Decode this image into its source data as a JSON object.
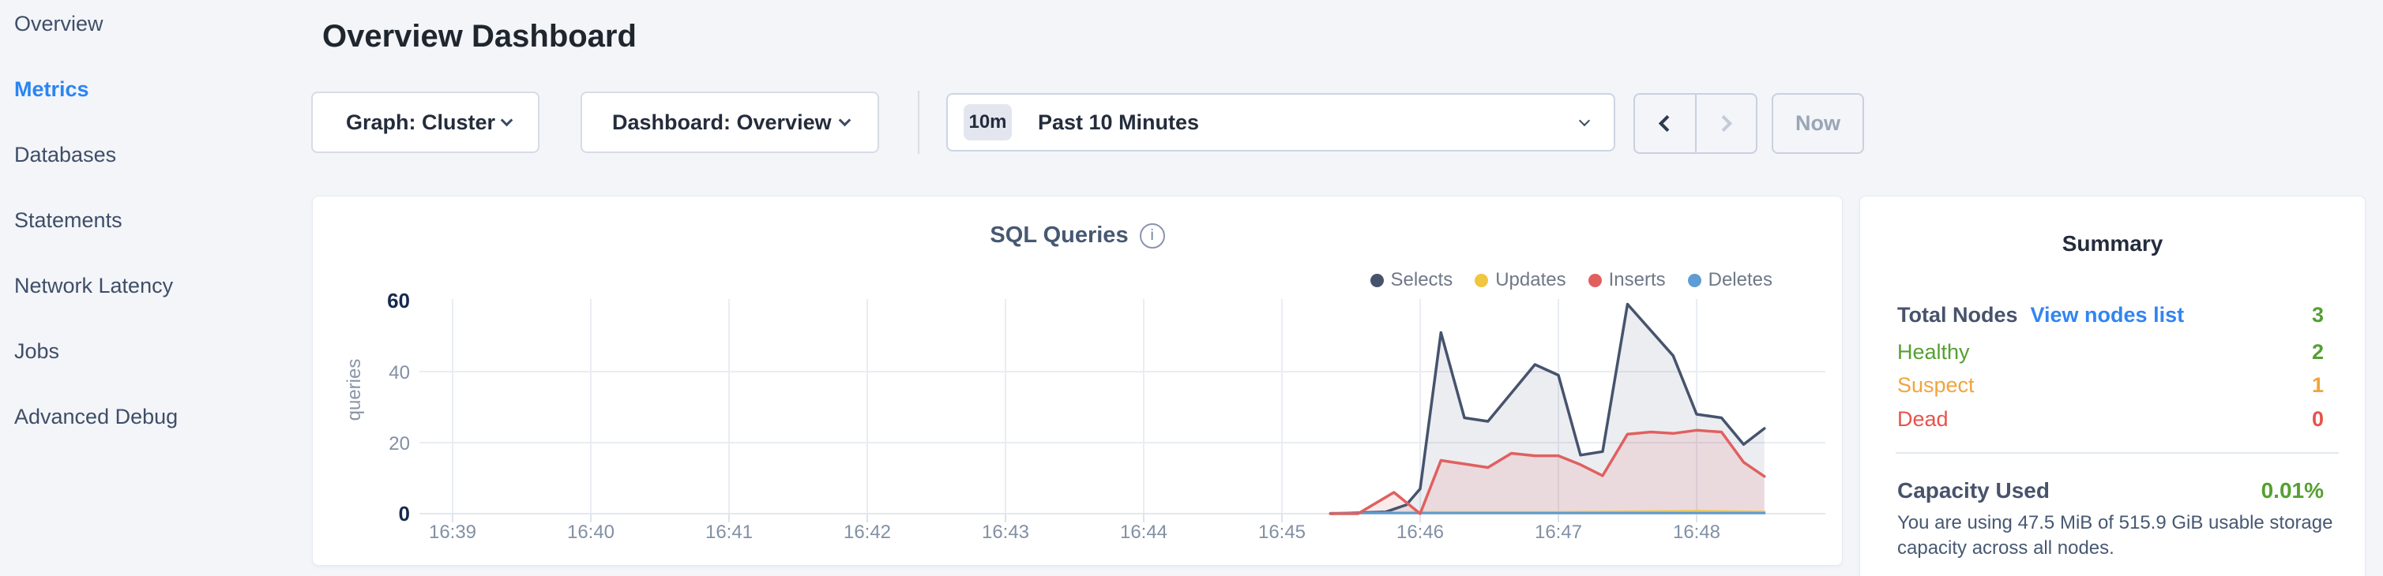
{
  "sidebar": {
    "items": [
      {
        "label": "Overview",
        "active": false
      },
      {
        "label": "Metrics",
        "active": true
      },
      {
        "label": "Databases",
        "active": false
      },
      {
        "label": "Statements",
        "active": false
      },
      {
        "label": "Network Latency",
        "active": false
      },
      {
        "label": "Jobs",
        "active": false
      },
      {
        "label": "Advanced Debug",
        "active": false
      }
    ]
  },
  "header": {
    "title": "Overview Dashboard"
  },
  "toolbar": {
    "graph_dropdown": {
      "label": "Graph: Cluster"
    },
    "dashboard_dropdown": {
      "label": "Dashboard: Overview"
    },
    "time_range": {
      "badge": "10m",
      "label": "Past 10 Minutes"
    },
    "now_label": "Now"
  },
  "chart": {
    "title": "SQL Queries",
    "info_symbol": "i",
    "ylabel": "queries"
  },
  "chart_data": {
    "type": "area",
    "title": "SQL Queries",
    "ylabel": "queries",
    "x_ticks": [
      "16:39",
      "16:40",
      "16:41",
      "16:42",
      "16:43",
      "16:44",
      "16:45",
      "16:46",
      "16:47",
      "16:48"
    ],
    "x_unit": "minutes after 16:39",
    "ylim": [
      0,
      60
    ],
    "y_ticks": [
      0,
      20,
      40,
      60
    ],
    "grid": true,
    "legend_position": "top-right",
    "series": [
      {
        "name": "Selects",
        "color": "#46536d",
        "fill": "rgba(70,83,109,0.10)",
        "points": [
          [
            6.35,
            0
          ],
          [
            6.75,
            0.5
          ],
          [
            6.9,
            2.5
          ],
          [
            7.0,
            7
          ],
          [
            7.15,
            51
          ],
          [
            7.32,
            27
          ],
          [
            7.49,
            26
          ],
          [
            7.83,
            42
          ],
          [
            8.0,
            39
          ],
          [
            8.16,
            16.5
          ],
          [
            8.32,
            17.5
          ],
          [
            8.5,
            59
          ],
          [
            8.83,
            44.5
          ],
          [
            9.0,
            28
          ],
          [
            9.18,
            27
          ],
          [
            9.34,
            19.5
          ],
          [
            9.49,
            24
          ]
        ]
      },
      {
        "name": "Updates",
        "color": "#f0c53f",
        "fill": "none",
        "points": [
          [
            6.35,
            0
          ],
          [
            7.0,
            0.4
          ],
          [
            8.0,
            0.4
          ],
          [
            9.0,
            0.7
          ],
          [
            9.49,
            0.5
          ]
        ]
      },
      {
        "name": "Inserts",
        "color": "#e06060",
        "fill": "rgba(224,96,96,0.13)",
        "points": [
          [
            6.35,
            0
          ],
          [
            6.55,
            0
          ],
          [
            6.81,
            6
          ],
          [
            7.0,
            0
          ],
          [
            7.15,
            15
          ],
          [
            7.32,
            14
          ],
          [
            7.49,
            13
          ],
          [
            7.66,
            17
          ],
          [
            7.83,
            16.3
          ],
          [
            8.0,
            16.3
          ],
          [
            8.16,
            13.8
          ],
          [
            8.32,
            10.7
          ],
          [
            8.5,
            22.4
          ],
          [
            8.67,
            23
          ],
          [
            8.83,
            22.6
          ],
          [
            9.0,
            23.5
          ],
          [
            9.18,
            23
          ],
          [
            9.34,
            14.5
          ],
          [
            9.49,
            10.5
          ]
        ]
      },
      {
        "name": "Deletes",
        "color": "#5e9cd3",
        "fill": "none",
        "points": [
          [
            6.35,
            0.15
          ],
          [
            9.49,
            0.15
          ]
        ]
      }
    ]
  },
  "summary": {
    "title": "Summary",
    "rows": [
      {
        "label": "Total Nodes",
        "link": "View nodes list",
        "value": "3",
        "color": "#55a031"
      },
      {
        "label": "Healthy",
        "value": "2",
        "color": "#55a031"
      },
      {
        "label": "Suspect",
        "value": "1",
        "color": "#f2a43c"
      },
      {
        "label": "Dead",
        "value": "0",
        "color": "#e8524a"
      }
    ],
    "capacity": {
      "label": "Capacity Used",
      "value": "0.01%",
      "value_color": "#55a031",
      "description": "You are using 47.5 MiB of 515.9 GiB usable storage capacity across all nodes."
    }
  }
}
